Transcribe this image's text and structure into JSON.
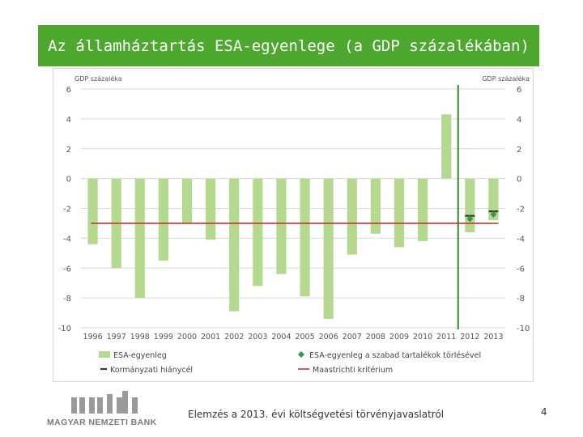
{
  "header": {
    "title": "Az államháztartás ESA-egyenlege (a GDP százalékában)",
    "background": "#4ea72e"
  },
  "chart_data": {
    "type": "bar",
    "categories": [
      "1996",
      "1997",
      "1998",
      "1999",
      "2000",
      "2001",
      "2002",
      "2003",
      "2004",
      "2005",
      "2006",
      "2007",
      "2008",
      "2009",
      "2010",
      "2011",
      "2012",
      "2013"
    ],
    "series": [
      {
        "name": "ESA-egyenleg",
        "color": "#b5d98f",
        "values": [
          -4.4,
          -6.0,
          -8.0,
          -5.5,
          -3.0,
          -4.1,
          -8.9,
          -7.2,
          -6.4,
          -7.9,
          -9.4,
          -5.1,
          -3.7,
          -4.6,
          -4.2,
          4.3,
          -3.6,
          -2.8
        ]
      }
    ],
    "points": {
      "free_reserves": {
        "name": "ESA-egyenleg a szabad tartalékok törlésével",
        "color": "#2e9c4f",
        "x": [
          "2012",
          "2013"
        ],
        "values": [
          -2.7,
          -2.4
        ]
      },
      "govt_deficit": {
        "name": "Kormányzati hiánycél",
        "color": "#3a3a3a",
        "x": [
          "2012",
          "2013"
        ],
        "values": [
          -2.5,
          -2.2
        ]
      }
    },
    "reference_line": {
      "name": "Maastrichti kritérium",
      "value": -3.0,
      "color": "#c0392b"
    },
    "vertical_marker": {
      "x": "2011",
      "color": "#2f8a2f"
    },
    "left_axis_label": "GDP százaléka",
    "right_axis_label": "GDP százaléka",
    "ylim": [
      -10,
      6
    ],
    "yticks": [
      "6",
      "4",
      "2",
      "0",
      "-2",
      "-4",
      "-6",
      "-8",
      "-10"
    ],
    "legend": [
      {
        "label": "ESA-egyenleg",
        "kind": "bar",
        "color": "#b5d98f"
      },
      {
        "label": "ESA-egyenleg a szabad tartalékok törlésével",
        "kind": "diamond",
        "color": "#2e9c4f"
      },
      {
        "label": "Kormányzati hiánycél",
        "kind": "dash",
        "color": "#3a3a3a"
      },
      {
        "label": "Maastrichti kritérium",
        "kind": "line",
        "color": "#c0392b"
      }
    ]
  },
  "footer": {
    "logo_text": "MAGYAR NEMZETI BANK",
    "subtitle": "Elemzés a 2013. évi költségvetési törvényjavaslatról",
    "page_number": "4"
  }
}
